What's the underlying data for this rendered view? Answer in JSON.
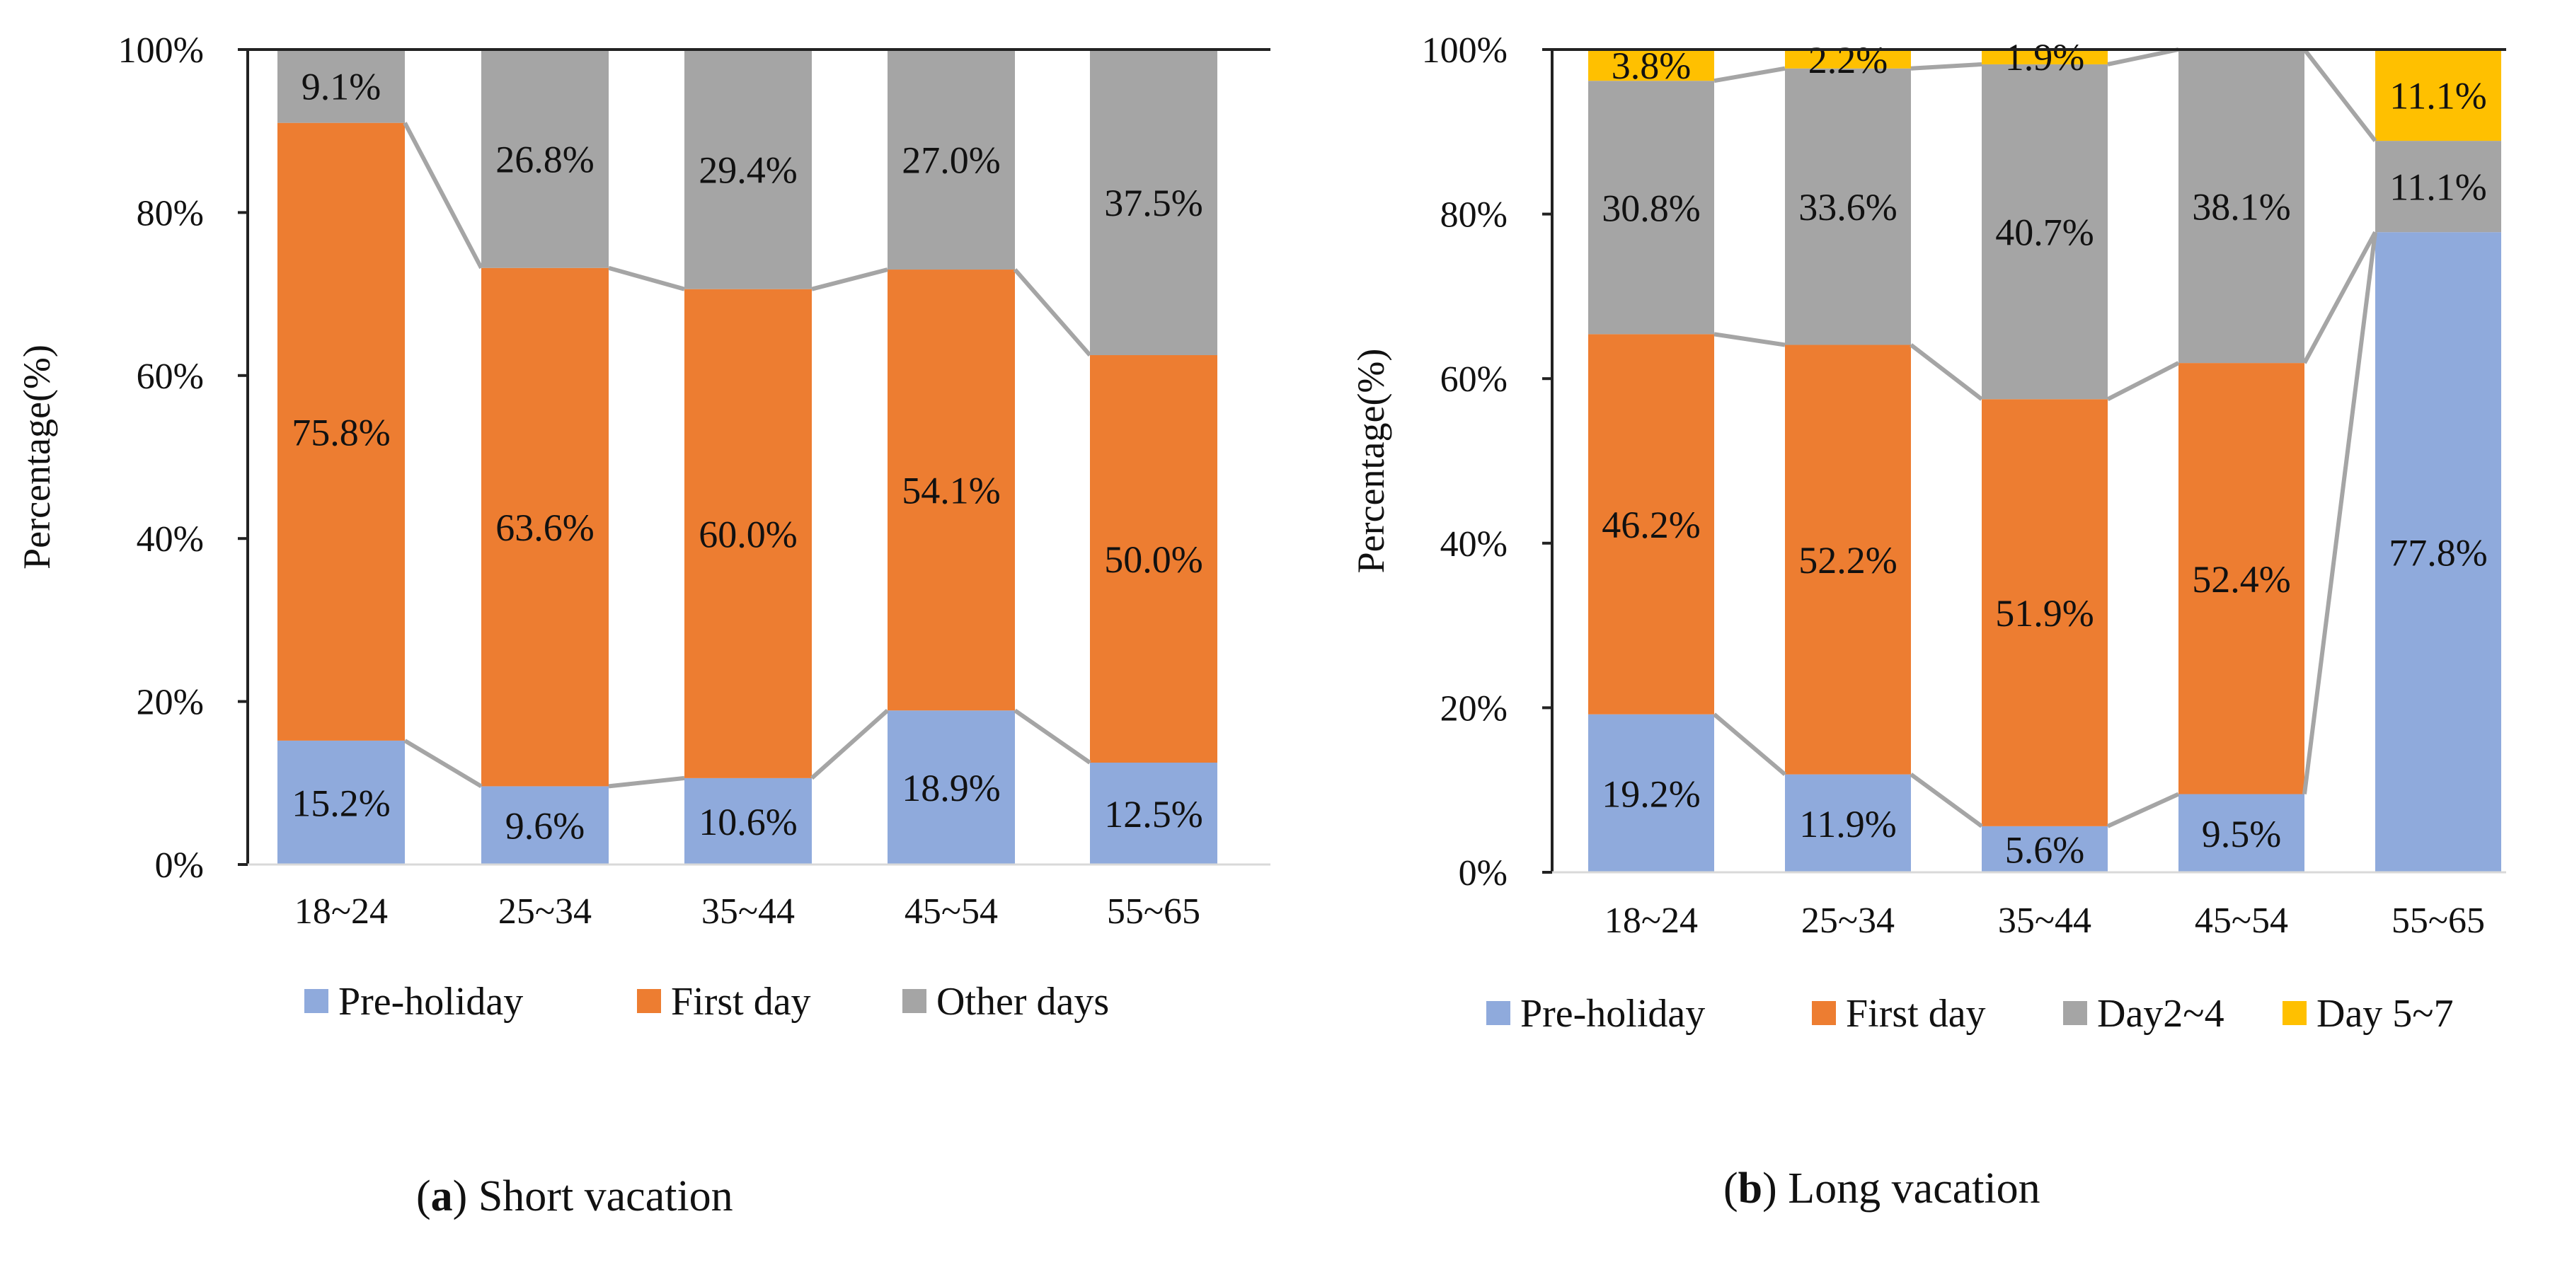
{
  "chart_data": [
    {
      "type": "bar",
      "stacked": true,
      "percent": true,
      "title": "",
      "caption_letter": "a",
      "caption_text": "Short vacation",
      "xlabel": "",
      "ylabel": "Percentage(%)",
      "ylim": [
        0,
        100
      ],
      "yticks": [
        "0%",
        "20%",
        "40%",
        "60%",
        "80%",
        "100%"
      ],
      "categories": [
        "18~24",
        "25~34",
        "35~44",
        "45~54",
        "55~65"
      ],
      "legend_position": "bottom",
      "series_connector_lines": true,
      "series": [
        {
          "name": "Pre-holiday",
          "color": "#8faadc",
          "values": [
            15.2,
            9.6,
            10.6,
            18.9,
            12.5
          ],
          "labels": [
            "15.2%",
            "9.6%",
            "10.6%",
            "18.9%",
            "12.5%"
          ]
        },
        {
          "name": "First day",
          "color": "#ed7d31",
          "values": [
            75.8,
            63.6,
            60.0,
            54.1,
            50.0
          ],
          "labels": [
            "75.8%",
            "63.6%",
            "60.0%",
            "54.1%",
            "50.0%"
          ]
        },
        {
          "name": "Other days",
          "color": "#a5a5a5",
          "values": [
            9.1,
            26.8,
            29.4,
            27.0,
            37.5
          ],
          "labels": [
            "9.1%",
            "26.8%",
            "29.4%",
            "27.0%",
            "37.5%"
          ]
        }
      ]
    },
    {
      "type": "bar",
      "stacked": true,
      "percent": true,
      "title": "",
      "caption_letter": "b",
      "caption_text": "Long vacation",
      "xlabel": "",
      "ylabel": "Percentage(%)",
      "ylim": [
        0,
        100
      ],
      "yticks": [
        "0%",
        "20%",
        "40%",
        "60%",
        "80%",
        "100%"
      ],
      "categories": [
        "18~24",
        "25~34",
        "35~44",
        "45~54",
        "55~65"
      ],
      "legend_position": "bottom",
      "series_connector_lines": true,
      "series": [
        {
          "name": "Pre-holiday",
          "color": "#8faadc",
          "values": [
            19.2,
            11.9,
            5.6,
            9.5,
            77.8
          ],
          "labels": [
            "19.2%",
            "11.9%",
            "5.6%",
            "9.5%",
            "77.8%"
          ]
        },
        {
          "name": "First day",
          "color": "#ed7d31",
          "values": [
            46.2,
            52.2,
            51.9,
            52.4,
            0
          ],
          "labels": [
            "46.2%",
            "52.2%",
            "51.9%",
            "52.4%",
            ""
          ]
        },
        {
          "name": "Day2~4",
          "color": "#a5a5a5",
          "values": [
            30.8,
            33.6,
            40.7,
            38.1,
            11.1
          ],
          "labels": [
            "30.8%",
            "33.6%",
            "40.7%",
            "38.1%",
            "11.1%"
          ]
        },
        {
          "name": "Day 5~7",
          "color": "#ffc000",
          "values": [
            3.8,
            2.2,
            1.9,
            0,
            11.1
          ],
          "labels": [
            "3.8%",
            "2.2%",
            "1.9%",
            "",
            "11.1%"
          ]
        }
      ]
    }
  ]
}
